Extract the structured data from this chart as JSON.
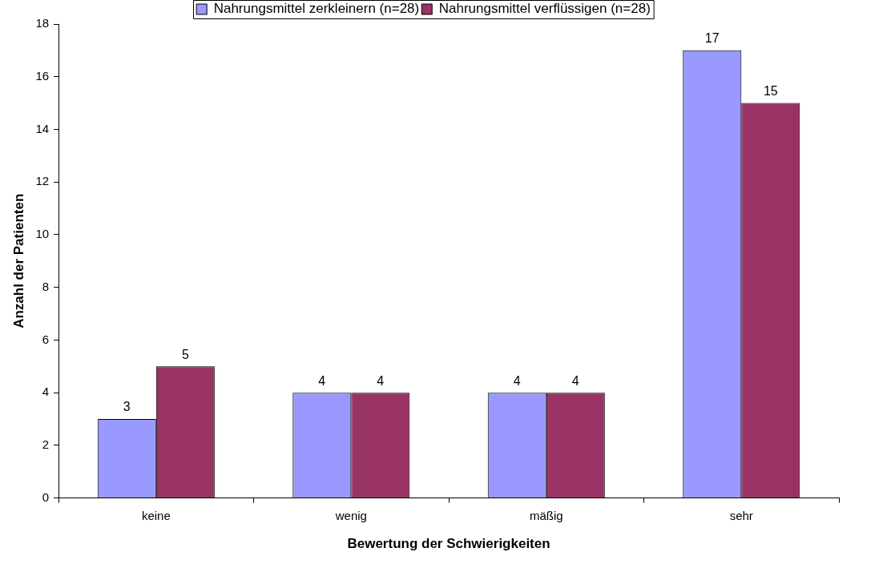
{
  "chart_data": {
    "type": "bar",
    "xlabel": "Bewertung der Schwierigkeiten",
    "ylabel": "Anzahl der Patienten",
    "categories": [
      "keine",
      "wenig",
      "mäßig",
      "sehr"
    ],
    "series": [
      {
        "name": "Nahrungsmittel zerkleinern (n=28)",
        "color": "#9999ff",
        "values": [
          3,
          4,
          4,
          17
        ]
      },
      {
        "name": "Nahrungsmittel verflüssigen (n=28)",
        "color": "#993366",
        "values": [
          5,
          4,
          4,
          15
        ]
      }
    ],
    "ylim": [
      0,
      18
    ],
    "yticks": [
      0,
      2,
      4,
      6,
      8,
      10,
      12,
      14,
      16,
      18
    ],
    "grid": false,
    "legend": "top",
    "data_labels": true
  }
}
